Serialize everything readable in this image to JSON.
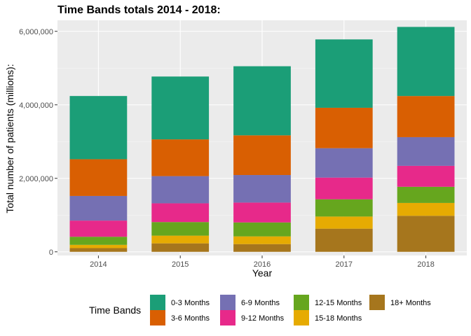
{
  "chart_data": {
    "type": "stacked-bar",
    "title": "Time Bands totals 2014 - 2018:",
    "xlabel": "Year",
    "ylabel": "Total number of patients (millions):",
    "categories": [
      "2014",
      "2015",
      "2016",
      "2017",
      "2018"
    ],
    "ylim": [
      -100000,
      6300000
    ],
    "yticks": [
      0,
      2000000,
      4000000,
      6000000
    ],
    "ytick_labels": [
      "0",
      "2,000,000",
      "4,000,000",
      "6,000,000"
    ],
    "legend_title": "Time Bands",
    "series": [
      {
        "name": "18+ Months",
        "color": "#a6761d",
        "values": [
          100000,
          230000,
          210000,
          630000,
          980000
        ]
      },
      {
        "name": "15-18 Months",
        "color": "#e6ab02",
        "values": [
          90000,
          210000,
          210000,
          330000,
          350000
        ]
      },
      {
        "name": "12-15 Months",
        "color": "#66a61e",
        "values": [
          220000,
          370000,
          380000,
          470000,
          440000
        ]
      },
      {
        "name": "9-12 Months",
        "color": "#e7298a",
        "values": [
          440000,
          510000,
          540000,
          590000,
          570000
        ]
      },
      {
        "name": "6-9 Months",
        "color": "#7570b3",
        "values": [
          670000,
          740000,
          750000,
          800000,
          780000
        ]
      },
      {
        "name": "3-6 Months",
        "color": "#d95f02",
        "values": [
          1000000,
          1000000,
          1080000,
          1100000,
          1120000
        ]
      },
      {
        "name": "0-3 Months",
        "color": "#1b9e77",
        "values": [
          1720000,
          1710000,
          1880000,
          1860000,
          1880000
        ]
      }
    ],
    "legend_order": [
      "0-3 Months",
      "3-6 Months",
      "6-9 Months",
      "9-12 Months",
      "12-15 Months",
      "15-18 Months",
      "18+ Months"
    ]
  }
}
